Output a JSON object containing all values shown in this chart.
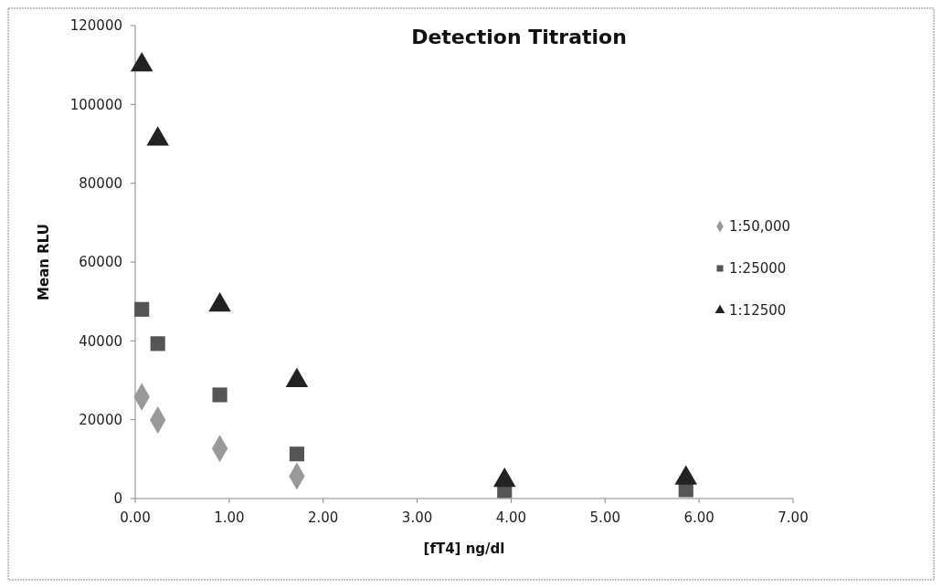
{
  "chart_data": {
    "type": "scatter",
    "title": "Detection Titration",
    "xlabel": "[fT4] ng/dl",
    "ylabel": "Mean RLU",
    "x": [
      0.07,
      0.24,
      0.9,
      1.72,
      3.93,
      5.86
    ],
    "series": [
      {
        "name": "1:50,000",
        "color": "#999999",
        "marker": "diamond",
        "values": [
          25800,
          19900,
          12700,
          5700,
          null,
          null
        ]
      },
      {
        "name": "1:25000",
        "color": "#555555",
        "marker": "square",
        "values": [
          48000,
          39300,
          26300,
          11300,
          2000,
          2200
        ]
      },
      {
        "name": "1:12500",
        "color": "#222222",
        "marker": "triangle",
        "values": [
          110000,
          91200,
          49100,
          29900,
          4600,
          5200
        ]
      }
    ],
    "xlim": [
      0,
      7
    ],
    "xticks": [
      {
        "value": 0,
        "label": "0.00"
      },
      {
        "value": 1,
        "label": "1.00"
      },
      {
        "value": 2,
        "label": "2.00"
      },
      {
        "value": 3,
        "label": "3.00"
      },
      {
        "value": 4,
        "label": "4.00"
      },
      {
        "value": 5,
        "label": "5.00"
      },
      {
        "value": 6,
        "label": "6.00"
      },
      {
        "value": 7,
        "label": "7.00"
      }
    ],
    "ylim": [
      0,
      120000
    ],
    "yticks": [
      0,
      20000,
      40000,
      60000,
      80000,
      100000,
      120000
    ],
    "grid": false,
    "legend": "right"
  }
}
